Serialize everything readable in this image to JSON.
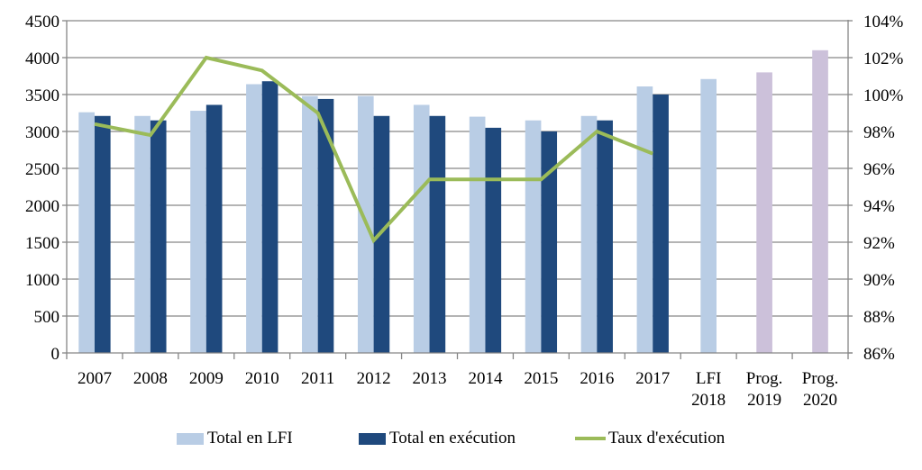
{
  "chart_data": {
    "type": "bar",
    "title": "",
    "xlabel": "",
    "ylabel": "",
    "categories": [
      "2007",
      "2008",
      "2009",
      "2010",
      "2011",
      "2012",
      "2013",
      "2014",
      "2015",
      "2016",
      "2017",
      "LFI 2018",
      "Prog. 2019",
      "Prog. 2020"
    ],
    "category_lines": [
      [
        "2007"
      ],
      [
        "2008"
      ],
      [
        "2009"
      ],
      [
        "2010"
      ],
      [
        "2011"
      ],
      [
        "2012"
      ],
      [
        "2013"
      ],
      [
        "2014"
      ],
      [
        "2015"
      ],
      [
        "2016"
      ],
      [
        "2017"
      ],
      [
        "LFI",
        "2018"
      ],
      [
        "Prog.",
        "2019"
      ],
      [
        "Prog.",
        "2020"
      ]
    ],
    "series": [
      {
        "name": "Total en LFI",
        "kind": "bar",
        "axis": "left",
        "color": "#B9CDE5",
        "alt_color_for_projections": "#CCC1DA",
        "values": [
          3260,
          3210,
          3280,
          3640,
          3480,
          3480,
          3360,
          3200,
          3150,
          3210,
          3610,
          3710,
          3800,
          4100
        ]
      },
      {
        "name": "Total en exécution",
        "kind": "bar",
        "axis": "left",
        "color": "#1F497D",
        "values": [
          3210,
          3150,
          3360,
          3680,
          3440,
          3210,
          3210,
          3050,
          3000,
          3150,
          3500,
          null,
          null,
          null
        ]
      },
      {
        "name": "Taux d'exécution",
        "kind": "line",
        "axis": "right",
        "color": "#9BBB59",
        "unit": "%",
        "values": [
          98.4,
          97.8,
          102.0,
          101.3,
          99.0,
          92.1,
          95.4,
          95.4,
          95.4,
          98.0,
          96.8,
          null,
          null,
          null
        ]
      }
    ],
    "y_left": {
      "ylim": [
        0,
        4500
      ],
      "ticks": [
        0,
        500,
        1000,
        1500,
        2000,
        2500,
        3000,
        3500,
        4000,
        4500
      ],
      "tick_labels": [
        "0",
        "500",
        "1000",
        "1500",
        "2000",
        "2500",
        "3000",
        "3500",
        "4000",
        "4500"
      ]
    },
    "y_right": {
      "ylim": [
        86,
        104
      ],
      "ticks": [
        86,
        88,
        90,
        92,
        94,
        96,
        98,
        100,
        102,
        104
      ],
      "tick_labels": [
        "86%",
        "88%",
        "90%",
        "92%",
        "94%",
        "96%",
        "98%",
        "100%",
        "102%",
        "104%"
      ]
    },
    "grid": true,
    "grid_color": "#868686",
    "legend_position": "bottom",
    "legend": [
      "Total en LFI",
      "Total en exécution",
      "Taux d'exécution"
    ]
  }
}
